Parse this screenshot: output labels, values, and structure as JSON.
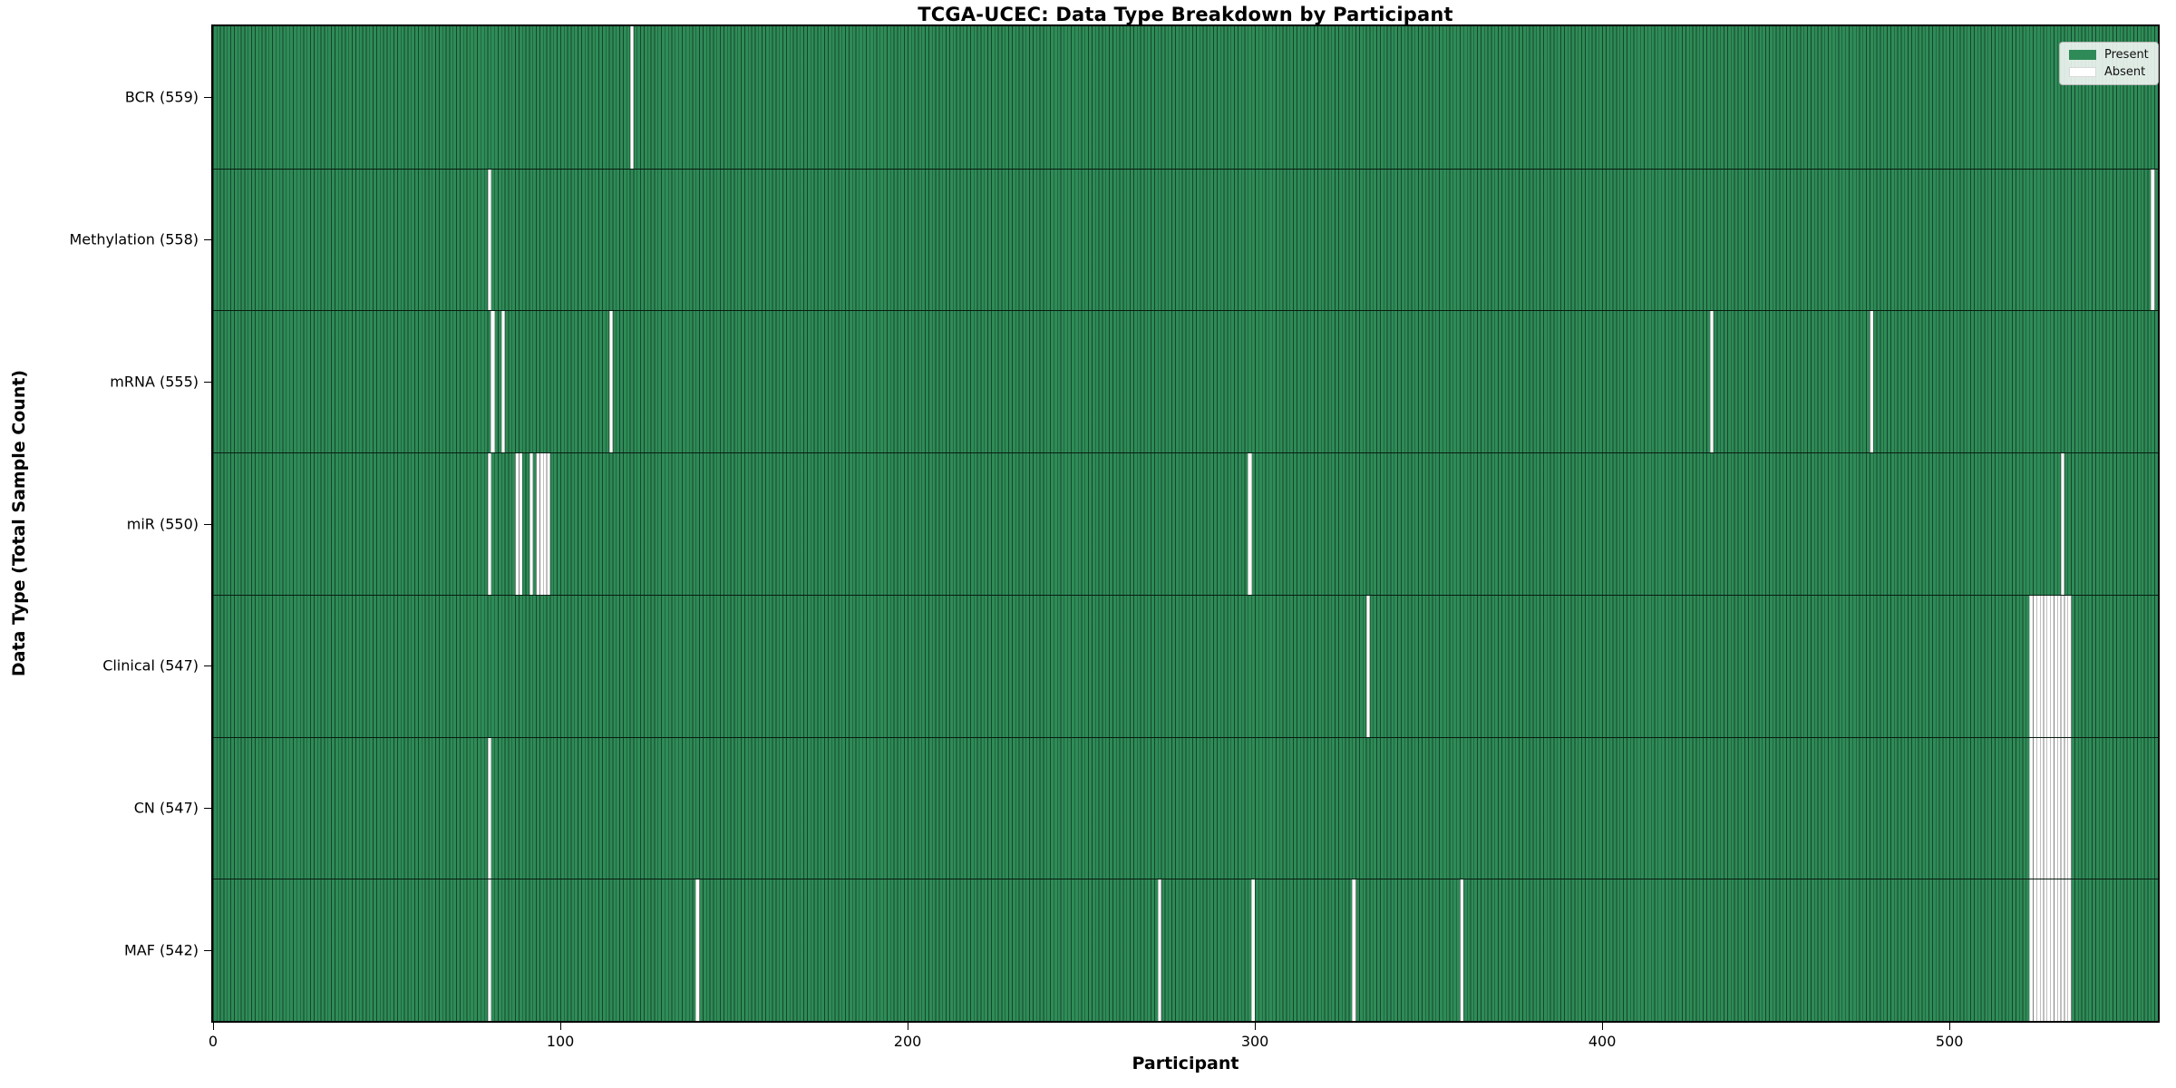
{
  "chart_data": {
    "type": "heatmap",
    "title": "TCGA-UCEC: Data Type Breakdown by Participant",
    "xlabel": "Participant",
    "ylabel": "Data Type (Total Sample Count)",
    "x_ticks": [
      0,
      100,
      200,
      300,
      400,
      500
    ],
    "xlim": [
      0,
      560
    ],
    "n_participants": 560,
    "grid": false,
    "colors": {
      "present": "#2e8b57",
      "absent": "#ffffff",
      "cell_edge": "rgba(0,0,0,0.5)"
    },
    "legend": {
      "position": "upper-right",
      "entries": [
        {
          "label": "Present",
          "color": "#2e8b57"
        },
        {
          "label": "Absent",
          "color": "#ffffff"
        }
      ]
    },
    "rows": [
      {
        "label": "BCR (559)",
        "data_type": "BCR",
        "present_count": 559,
        "absent_participants": [
          120
        ]
      },
      {
        "label": "Methylation (558)",
        "data_type": "Methylation",
        "present_count": 558,
        "absent_participants": [
          79,
          558
        ]
      },
      {
        "label": "mRNA (555)",
        "data_type": "mRNA",
        "present_count": 555,
        "absent_participants": [
          80,
          83,
          114,
          431,
          477
        ]
      },
      {
        "label": "miR (550)",
        "data_type": "miR",
        "present_count": 550,
        "absent_participants": [
          79,
          87,
          88,
          91,
          93,
          94,
          95,
          96,
          298,
          532
        ]
      },
      {
        "label": "Clinical (547)",
        "data_type": "Clinical",
        "present_count": 547,
        "absent_participants": [
          332,
          523,
          524,
          525,
          526,
          527,
          528,
          529,
          530,
          531,
          532,
          533,
          534
        ]
      },
      {
        "label": "CN (547)",
        "data_type": "CN",
        "present_count": 547,
        "absent_participants": [
          79,
          523,
          524,
          525,
          526,
          527,
          528,
          529,
          530,
          531,
          532,
          533,
          534
        ]
      },
      {
        "label": "MAF (542)",
        "data_type": "MAF",
        "present_count": 542,
        "absent_participants": [
          79,
          139,
          272,
          299,
          328,
          359,
          523,
          524,
          525,
          526,
          527,
          528,
          529,
          530,
          531,
          532,
          533,
          534
        ]
      }
    ]
  }
}
